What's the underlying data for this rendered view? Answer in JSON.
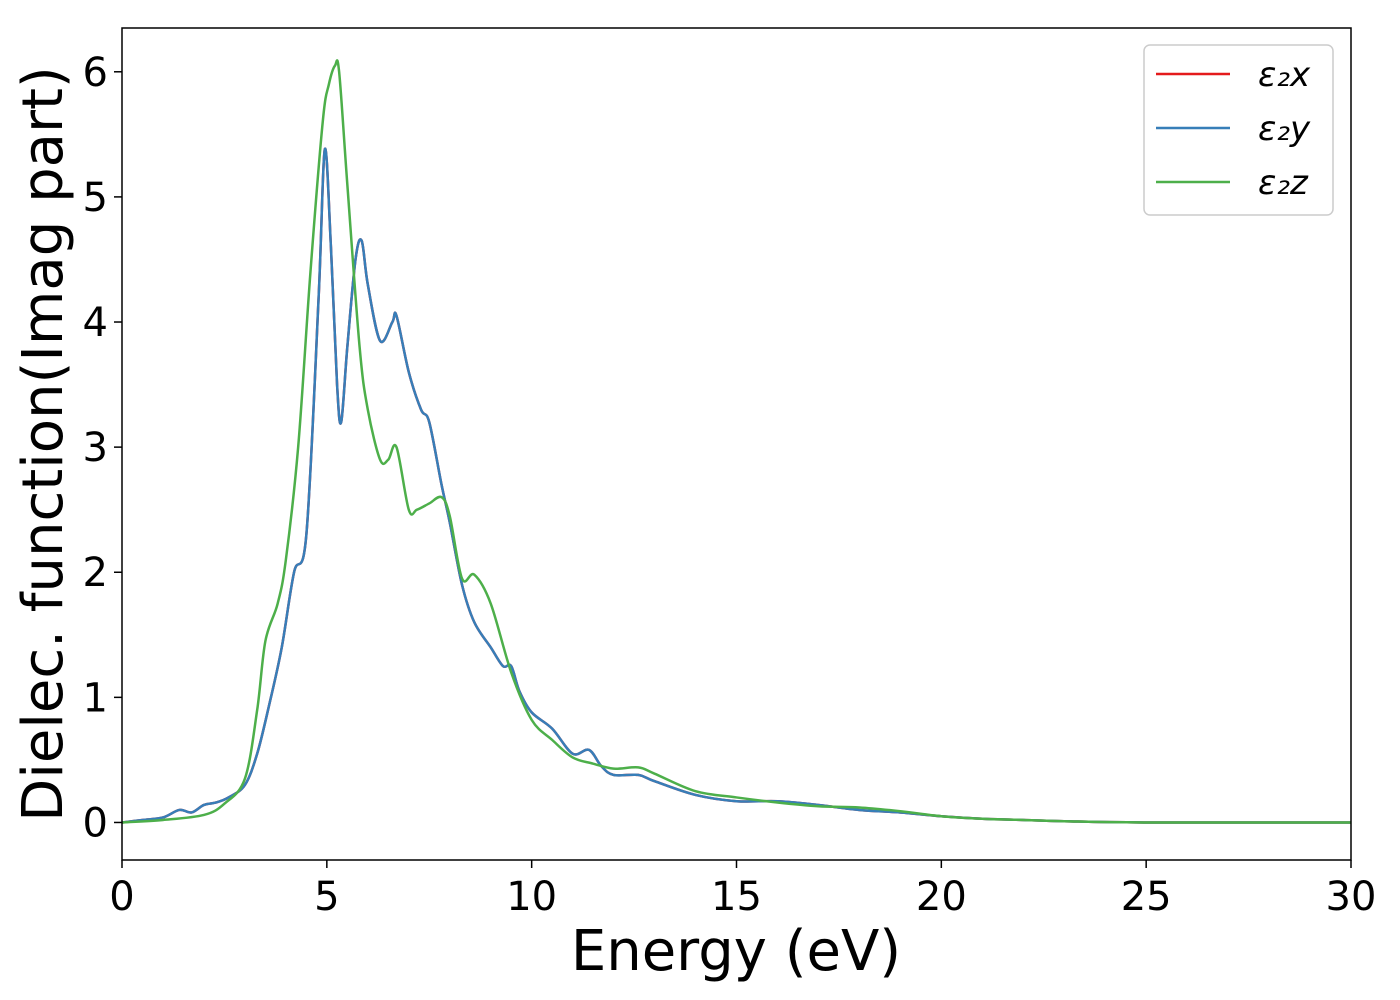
{
  "chart_data": {
    "type": "line",
    "xlabel": "Energy (eV)",
    "ylabel": "Dielec. function(Imag part)",
    "xlim": [
      0,
      30
    ],
    "ylim": [
      -0.3,
      6.35
    ],
    "xticks": [
      0,
      5,
      10,
      15,
      20,
      25,
      30
    ],
    "yticks": [
      0,
      1,
      2,
      3,
      4,
      5,
      6
    ],
    "grid": false,
    "legend_position": "top-right",
    "series": [
      {
        "name": "ε₂x",
        "color": "#e41a1c",
        "x": [
          0,
          0.5,
          1.0,
          1.4,
          1.7,
          2.0,
          2.3,
          2.6,
          3.0,
          3.3,
          3.6,
          3.9,
          4.2,
          4.5,
          4.8,
          4.95,
          5.1,
          5.25,
          5.35,
          5.5,
          5.7,
          5.85,
          6.0,
          6.3,
          6.6,
          6.7,
          7.0,
          7.3,
          7.5,
          7.8,
          8.0,
          8.3,
          8.6,
          9.0,
          9.3,
          9.5,
          9.7,
          10.0,
          10.5,
          11.0,
          11.4,
          11.7,
          12.0,
          12.6,
          13.0,
          14.0,
          15.0,
          16.0,
          17.0,
          18.0,
          19.0,
          20.0,
          21.0,
          22.0,
          23.0,
          25.0,
          30.0
        ],
        "y": [
          0,
          0.02,
          0.04,
          0.1,
          0.08,
          0.14,
          0.16,
          0.2,
          0.3,
          0.55,
          0.95,
          1.4,
          2.0,
          2.3,
          4.2,
          5.38,
          4.6,
          3.5,
          3.2,
          3.8,
          4.5,
          4.65,
          4.3,
          3.85,
          4.0,
          4.05,
          3.6,
          3.3,
          3.2,
          2.7,
          2.4,
          1.9,
          1.6,
          1.4,
          1.25,
          1.25,
          1.05,
          0.88,
          0.75,
          0.55,
          0.58,
          0.45,
          0.38,
          0.38,
          0.33,
          0.22,
          0.17,
          0.17,
          0.14,
          0.1,
          0.08,
          0.05,
          0.03,
          0.02,
          0.01,
          0,
          0
        ]
      },
      {
        "name": "ε₂y",
        "color": "#377eb8",
        "x": [
          0,
          0.5,
          1.0,
          1.4,
          1.7,
          2.0,
          2.3,
          2.6,
          3.0,
          3.3,
          3.6,
          3.9,
          4.2,
          4.5,
          4.8,
          4.95,
          5.1,
          5.25,
          5.35,
          5.5,
          5.7,
          5.85,
          6.0,
          6.3,
          6.6,
          6.7,
          7.0,
          7.3,
          7.5,
          7.8,
          8.0,
          8.3,
          8.6,
          9.0,
          9.3,
          9.5,
          9.7,
          10.0,
          10.5,
          11.0,
          11.4,
          11.7,
          12.0,
          12.6,
          13.0,
          14.0,
          15.0,
          16.0,
          17.0,
          18.0,
          19.0,
          20.0,
          21.0,
          22.0,
          23.0,
          25.0,
          30.0
        ],
        "y": [
          0,
          0.02,
          0.04,
          0.1,
          0.08,
          0.14,
          0.16,
          0.2,
          0.3,
          0.55,
          0.95,
          1.4,
          2.0,
          2.3,
          4.2,
          5.38,
          4.6,
          3.5,
          3.2,
          3.8,
          4.5,
          4.65,
          4.3,
          3.85,
          4.0,
          4.05,
          3.6,
          3.3,
          3.2,
          2.7,
          2.4,
          1.9,
          1.6,
          1.4,
          1.25,
          1.25,
          1.05,
          0.88,
          0.75,
          0.55,
          0.58,
          0.45,
          0.38,
          0.38,
          0.33,
          0.22,
          0.17,
          0.17,
          0.14,
          0.1,
          0.08,
          0.05,
          0.03,
          0.02,
          0.01,
          0,
          0
        ]
      },
      {
        "name": "ε₂z",
        "color": "#4daf4a",
        "x": [
          0,
          1.0,
          2.0,
          2.5,
          3.0,
          3.3,
          3.5,
          3.8,
          4.0,
          4.3,
          4.6,
          4.9,
          5.05,
          5.2,
          5.3,
          5.5,
          5.8,
          6.0,
          6.3,
          6.5,
          6.7,
          7.0,
          7.2,
          7.5,
          7.8,
          8.0,
          8.3,
          8.6,
          9.0,
          9.5,
          10.0,
          10.5,
          11.0,
          11.5,
          12.0,
          12.6,
          13.0,
          14.0,
          15.0,
          16.0,
          17.0,
          18.0,
          19.0,
          20.0,
          21.0,
          22.0,
          23.0,
          25.0,
          30.0
        ],
        "y": [
          0,
          0.02,
          0.06,
          0.15,
          0.35,
          0.9,
          1.45,
          1.75,
          2.1,
          3.0,
          4.4,
          5.6,
          5.9,
          6.05,
          6.0,
          5.1,
          3.8,
          3.3,
          2.9,
          2.9,
          3.0,
          2.5,
          2.5,
          2.55,
          2.6,
          2.45,
          1.95,
          1.98,
          1.75,
          1.2,
          0.82,
          0.66,
          0.52,
          0.47,
          0.43,
          0.44,
          0.39,
          0.25,
          0.2,
          0.16,
          0.13,
          0.12,
          0.09,
          0.05,
          0.03,
          0.02,
          0.01,
          0,
          0
        ]
      }
    ]
  }
}
